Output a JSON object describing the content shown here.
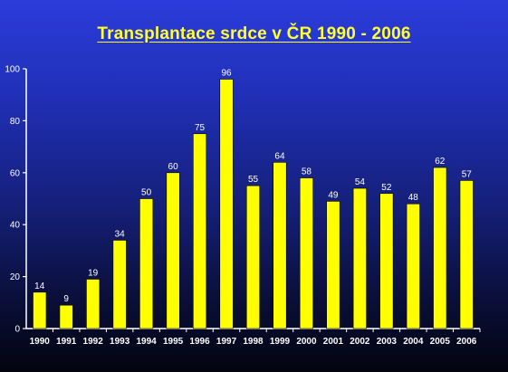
{
  "title": "Transplantace srdce v ČR 1990 - 2006",
  "colors": {
    "bar": "#ffff00",
    "bar_stroke": "#000000",
    "axis": "#ffffff",
    "text": "#ffffff",
    "title": "#ffff33"
  },
  "chart_data": {
    "type": "bar",
    "title": "Transplantace srdce v ČR 1990 - 2006",
    "xlabel": "",
    "ylabel": "",
    "categories": [
      "1990",
      "1991",
      "1992",
      "1993",
      "1994",
      "1995",
      "1996",
      "1997",
      "1998",
      "1999",
      "2000",
      "2001",
      "2002",
      "2003",
      "2004",
      "2005",
      "2006"
    ],
    "values": [
      14,
      9,
      19,
      34,
      50,
      60,
      75,
      96,
      55,
      64,
      58,
      49,
      54,
      52,
      48,
      62,
      57
    ],
    "data_labels": [
      "14",
      "9",
      "19",
      "34",
      "50",
      "60",
      "75",
      "96",
      "55",
      "64",
      "58",
      "49",
      "54",
      "52",
      "48",
      "62",
      "57"
    ],
    "ylim": [
      0,
      100
    ],
    "yticks": [
      0,
      20,
      40,
      60,
      80,
      100
    ],
    "ytick_labels": [
      "0",
      "20",
      "40",
      "60",
      "80",
      "100"
    ],
    "grid": false,
    "legend": "none"
  }
}
